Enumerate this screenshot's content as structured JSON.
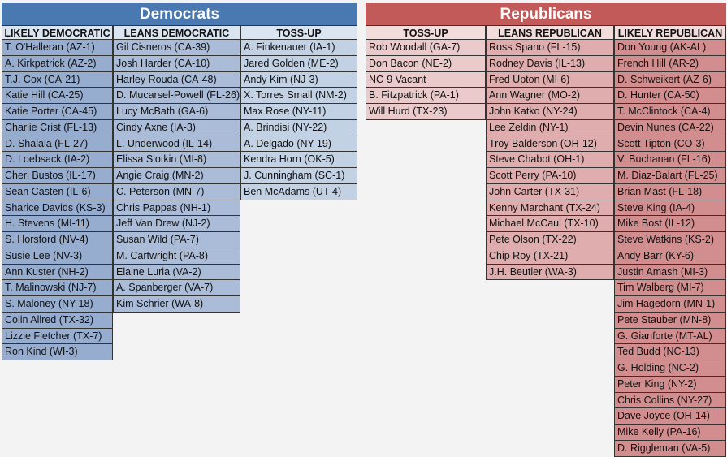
{
  "democrats": {
    "title": "Democrats",
    "columns": [
      {
        "header": "LIKELY DEMOCRATIC",
        "items": [
          "T. O'Halleran (AZ-1)",
          "A. Kirkpatrick (AZ-2)",
          "T.J. Cox (CA-21)",
          "Katie Hill (CA-25)",
          "Katie Porter (CA-45)",
          "Charlie Crist (FL-13)",
          "D. Shalala (FL-27)",
          "D. Loebsack (IA-2)",
          "Cheri Bustos (IL-17)",
          "Sean Casten (IL-6)",
          "Sharice Davids (KS-3)",
          "H. Stevens (MI-11)",
          "S. Horsford (NV-4)",
          "Susie Lee (NV-3)",
          "Ann Kuster (NH-2)",
          "T. Malinowski (NJ-7)",
          "S. Maloney (NY-18)",
          "Colin Allred (TX-32)",
          "Lizzie Fletcher (TX-7)",
          "Ron Kind (WI-3)"
        ]
      },
      {
        "header": "LEANS DEMOCRATIC",
        "items": [
          "Gil Cisneros (CA-39)",
          "Josh Harder (CA-10)",
          "Harley Rouda (CA-48)",
          "D. Mucarsel-Powell (FL-26)",
          "Lucy McBath (GA-6)",
          "Cindy Axne (IA-3)",
          "L. Underwood (IL-14)",
          "Elissa Slotkin (MI-8)",
          "Angie Craig (MN-2)",
          "C. Peterson (MN-7)",
          "Chris Pappas (NH-1)",
          "Jeff Van Drew (NJ-2)",
          "Susan Wild (PA-7)",
          "M. Cartwright (PA-8)",
          "Elaine Luria (VA-2)",
          "A. Spanberger (VA-7)",
          "Kim Schrier (WA-8)"
        ]
      },
      {
        "header": "TOSS-UP",
        "items": [
          "A. Finkenauer (IA-1)",
          "Jared Golden (ME-2)",
          "Andy Kim (NJ-3)",
          "X. Torres Small (NM-2)",
          "Max Rose (NY-11)",
          "A. Brindisi (NY-22)",
          "A. Delgado (NY-19)",
          "Kendra Horn (OK-5)",
          "J. Cunningham (SC-1)",
          "Ben McAdams (UT-4)"
        ]
      }
    ]
  },
  "republicans": {
    "title": "Republicans",
    "columns": [
      {
        "header": "TOSS-UP",
        "items": [
          "Rob Woodall (GA-7)",
          "Don Bacon (NE-2)",
          "NC-9 Vacant",
          "B. Fitzpatrick (PA-1)",
          "Will Hurd (TX-23)"
        ]
      },
      {
        "header": "LEANS REPUBLICAN",
        "items": [
          "Ross Spano (FL-15)",
          "Rodney Davis (IL-13)",
          "Fred Upton (MI-6)",
          "Ann Wagner (MO-2)",
          "John Katko (NY-24)",
          "Lee Zeldin (NY-1)",
          "Troy Balderson (OH-12)",
          "Steve Chabot (OH-1)",
          "Scott Perry (PA-10)",
          "John Carter (TX-31)",
          "Kenny Marchant (TX-24)",
          "Michael McCaul (TX-10)",
          "Pete Olson (TX-22)",
          "Chip Roy (TX-21)",
          "J.H. Beutler (WA-3)"
        ]
      },
      {
        "header": "LIKELY REPUBLICAN",
        "items": [
          "Don Young (AK-AL)",
          "French Hill (AR-2)",
          "D. Schweikert (AZ-6)",
          "D. Hunter (CA-50)",
          "T. McClintock (CA-4)",
          "Devin Nunes (CA-22)",
          "Scott Tipton (CO-3)",
          "V. Buchanan (FL-16)",
          "M. Diaz-Balart (FL-25)",
          "Brian Mast (FL-18)",
          "Steve King (IA-4)",
          "Mike Bost (IL-12)",
          "Steve Watkins (KS-2)",
          "Andy Barr (KY-6)",
          "Justin Amash (MI-3)",
          "Tim Walberg (MI-7)",
          "Jim Hagedorn (MN-1)",
          "Pete Stauber (MN-8)",
          "G. Gianforte (MT-AL)",
          "Ted Budd (NC-13)",
          "G. Holding (NC-2)",
          "Peter King (NY-2)",
          "Chris Collins (NY-27)",
          "Dave Joyce (OH-14)",
          "Mike Kelly (PA-16)",
          "D. Riggleman (VA-5)"
        ]
      }
    ]
  }
}
